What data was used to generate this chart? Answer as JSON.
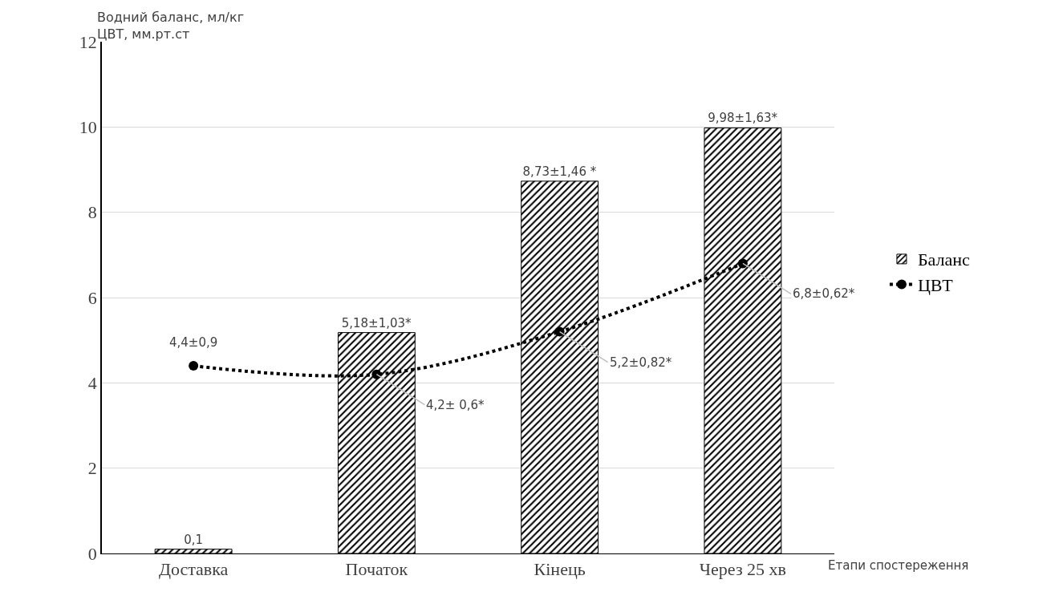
{
  "chart_data": {
    "type": "bar",
    "ylabel": "Водний баланс, мл/кг\nЦВТ, мм.рт.ст",
    "xlabel": "Етапи спостереження",
    "categories": [
      "Доставка",
      "Початок",
      "Кінець",
      "Через 25 хв"
    ],
    "series": [
      {
        "name": "Баланс",
        "color": "#000000",
        "values": [
          0.1,
          5.18,
          8.73,
          9.98
        ],
        "value_labels": [
          "0,1",
          "5,18±1,03*",
          "8,73±1,46 *",
          "9,98±1,63*"
        ]
      },
      {
        "name": "ЦВТ",
        "type": "line",
        "color": "#000000",
        "marker": "circle",
        "line_style": "dotted",
        "values": [
          4.4,
          4.2,
          5.2,
          6.8
        ],
        "value_labels": [
          "4,4±0,9",
          "4,2± 0,6*",
          "5,2±0,82*",
          "6,8±0,62*"
        ]
      }
    ],
    "ylim": [
      0,
      12
    ],
    "yticks": [
      0,
      2,
      4,
      6,
      8,
      10,
      12
    ],
    "grid": "y",
    "legend": "right"
  }
}
